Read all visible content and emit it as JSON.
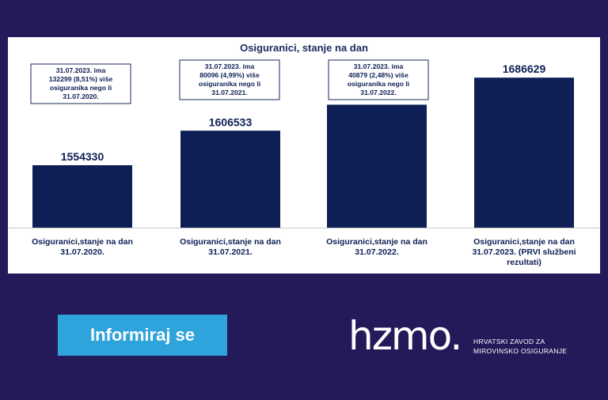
{
  "chart_data": {
    "type": "bar",
    "title": "Osiguranici, stanje na dan",
    "categories": [
      [
        "Osiguranici,stanje na dan",
        "31.07.2020."
      ],
      [
        "Osiguranici,stanje na dan",
        "31.07.2021."
      ],
      [
        "Osiguranici,stanje na dan",
        "31.07.2022."
      ],
      [
        "Osiguranici,stanje na dan",
        "31.07.2023. (PRVI službeni",
        "rezultati)"
      ]
    ],
    "values": [
      1554330,
      1606533,
      1645750,
      1686629
    ],
    "ylim": [
      1460000,
      1700000
    ],
    "bar_color": "#0d1f55",
    "annotations": [
      [
        "31.07.2023. ima",
        "132299 (8,51%) više",
        "osiguranika nego li",
        "31.07.2020."
      ],
      [
        "31.07.2023. ima",
        "80096  (4,99%) više",
        "osiguranika nego li",
        "31.07.2021."
      ],
      [
        "31.07.2023. ima",
        "40879 (2,48%) više",
        "osiguranika nego li",
        "31.07.2022."
      ]
    ]
  },
  "cta": {
    "label": "Informiraj se",
    "color": "#2ea3dc"
  },
  "logo": {
    "word": "hzmo.",
    "line1": "HRVATSKI ZAVOD ZA",
    "line2": "MIROVINSKO OSIGURANJE"
  },
  "colors": {
    "background": "#241a5a",
    "panel": "#ffffff",
    "text": "#1a2a5e"
  }
}
